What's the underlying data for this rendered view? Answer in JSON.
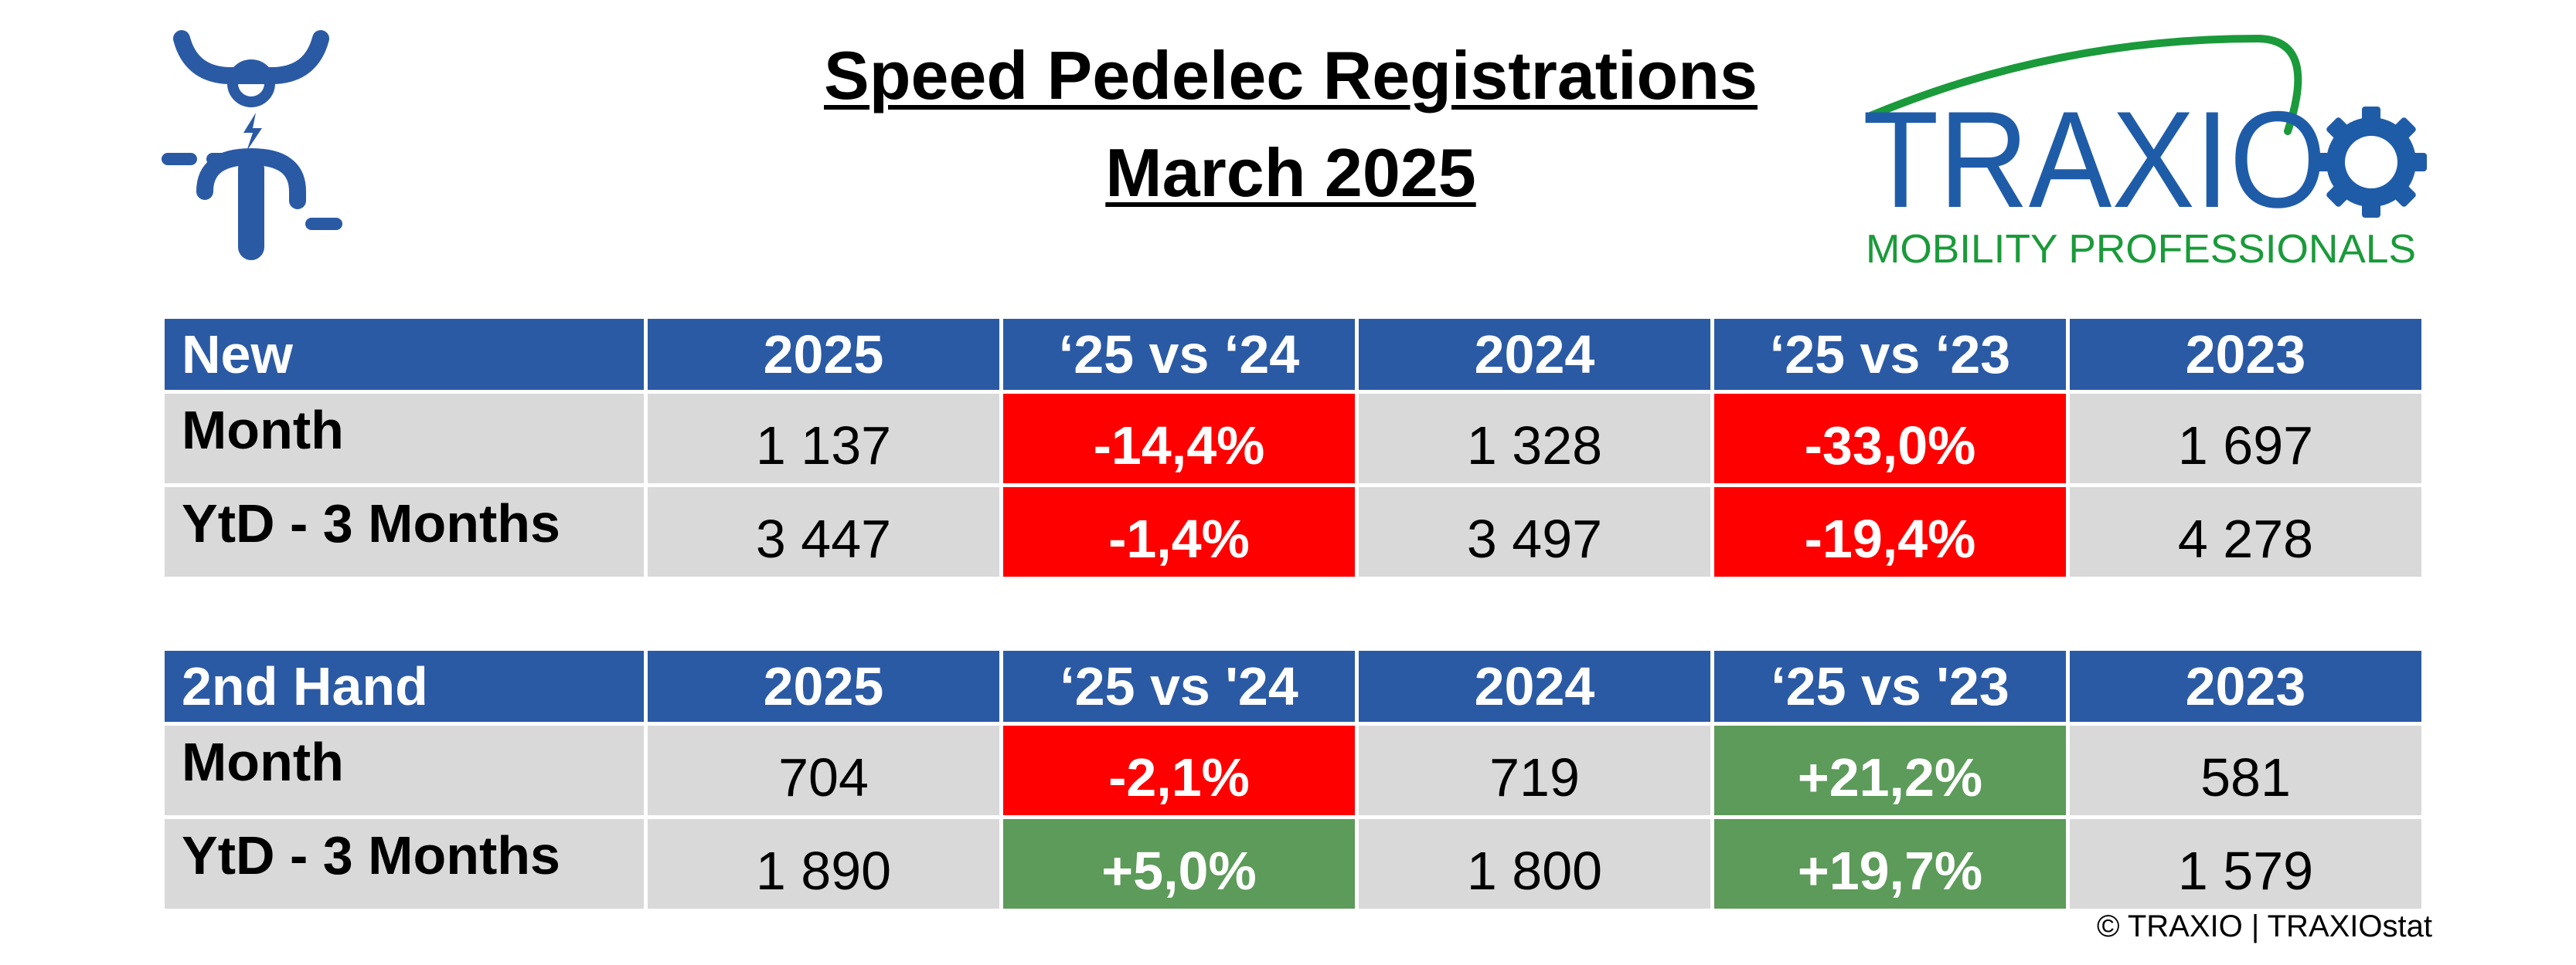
{
  "title": {
    "line1": "Speed Pedelec Registrations",
    "line2": "March 2025"
  },
  "logo": {
    "name": "TRAXIO",
    "tagline": "MOBILITY PROFESSIONALS",
    "color_blue": "#1f5ca8",
    "color_green": "#1a9a3a"
  },
  "icons": {
    "left": "speed-pedelec-rider-icon"
  },
  "colors": {
    "header": "#2b5aa5",
    "negative": "#ff0000",
    "positive": "#5c9b59",
    "cell": "#d9d9d9"
  },
  "new_table": {
    "headers": [
      "New",
      "2025",
      "‘25 vs ‘24",
      "2024",
      "‘25 vs ‘23",
      "2023"
    ],
    "rows": [
      {
        "label": "Month",
        "v2025": "1 137",
        "d24": "-14,4%",
        "v2024": "1 328",
        "d23": "-33,0%",
        "v2023": "1 697"
      },
      {
        "label": "YtD - 3 Months",
        "v2025": "3 447",
        "d24": "-1,4%",
        "v2024": "3 497",
        "d23": "-19,4%",
        "v2023": "4 278"
      }
    ]
  },
  "second_table": {
    "headers": [
      "2nd Hand",
      "2025",
      "‘25 vs '24",
      "2024",
      "‘25 vs '23",
      "2023"
    ],
    "rows": [
      {
        "label": "Month",
        "v2025": "704",
        "d24": "-2,1%",
        "v2024": "719",
        "d23": "+21,2%",
        "v2023": "581"
      },
      {
        "label": "YtD - 3 Months",
        "v2025": "1 890",
        "d24": "+5,0%",
        "v2024": "1 800",
        "d23": "+19,7%",
        "v2023": "1 579"
      }
    ]
  },
  "footer": {
    "copyright": "© TRAXIO | TRAXIOstat"
  }
}
